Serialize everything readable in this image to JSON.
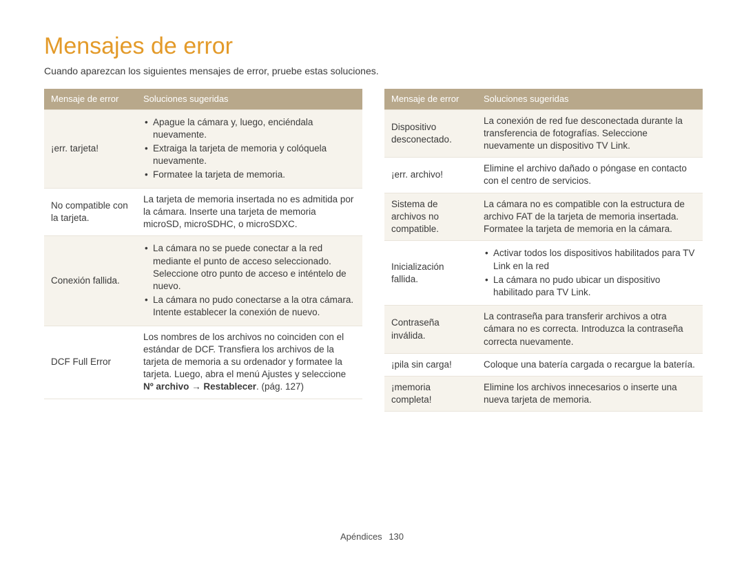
{
  "colors": {
    "title": "#e39a29",
    "header_bg": "#b8a88b",
    "header_text": "#ffffff",
    "row_alt_bg": "#f6f3ec",
    "row_bg": "#ffffff",
    "border": "#e9e4da",
    "text": "#3a3a3a"
  },
  "typography": {
    "title_fontsize": 34,
    "body_fontsize": 13.5,
    "header_fontsize": 13,
    "line_height": 1.35
  },
  "title": "Mensajes de error",
  "intro": "Cuando aparezcan los siguientes mensajes de error, pruebe estas soluciones.",
  "headers": {
    "c1": "Mensaje de error",
    "c2": "Soluciones sugeridas"
  },
  "left": [
    {
      "error": "¡err. tarjeta!",
      "type": "list",
      "items": [
        "Apague la cámara y, luego, enciéndala nuevamente.",
        "Extraiga la tarjeta de memoria y colóquela nuevamente.",
        "Formatee la tarjeta de memoria."
      ],
      "shaded": true
    },
    {
      "error": "No compatible con la tarjeta.",
      "type": "text",
      "text": "La tarjeta de memoria insertada no es admitida por la cámara. Inserte una tarjeta de memoria microSD, microSDHC, o microSDXC.",
      "shaded": false
    },
    {
      "error": "Conexión fallida.",
      "type": "list",
      "items": [
        "La cámara no se puede conectar a la red mediante el punto de acceso seleccionado. Seleccione otro punto de acceso e inténtelo de nuevo.",
        "La cámara no pudo conectarse a la otra cámara. Intente establecer la conexión de nuevo."
      ],
      "shaded": true
    },
    {
      "error": "DCF Full Error",
      "type": "dcf",
      "pre": "Los nombres de los archivos no coinciden con el estándar de DCF. Transfiera los archivos de la tarjeta de memoria a su ordenador y formatee la tarjeta. Luego, abra el menú Ajustes y seleccione ",
      "bold": "Nº archivo → Restablecer",
      "post": ". (pág. 127)",
      "shaded": false
    }
  ],
  "right": [
    {
      "error": "Dispositivo desconectado.",
      "type": "text",
      "text": "La conexión de red fue desconectada durante la transferencia de fotografías. Seleccione nuevamente un dispositivo TV Link.",
      "shaded": true
    },
    {
      "error": "¡err. archivo!",
      "type": "text",
      "text": "Elimine el archivo dañado o póngase en contacto con el centro de servicios.",
      "shaded": false
    },
    {
      "error": "Sistema de archivos no compatible.",
      "type": "text",
      "text": "La cámara no es compatible con la estructura de archivo FAT de la tarjeta de memoria insertada. Formatee la tarjeta de memoria en la cámara.",
      "shaded": true
    },
    {
      "error": "Inicialización fallida.",
      "type": "list",
      "items": [
        "Activar todos los dispositivos habilitados para TV Link en la red",
        "La cámara no pudo ubicar un dispositivo habilitado para TV Link."
      ],
      "shaded": false
    },
    {
      "error": "Contraseña inválida.",
      "type": "text",
      "text": "La contraseña para transferir archivos a otra cámara no es correcta. Introduzca la contraseña correcta nuevamente.",
      "shaded": true
    },
    {
      "error": "¡pila sin carga!",
      "type": "text",
      "text": "Coloque una batería cargada o recargue la batería.",
      "shaded": false
    },
    {
      "error": "¡memoria completa!",
      "type": "text",
      "text": "Elimine los archivos innecesarios o inserte una nueva tarjeta de memoria.",
      "shaded": true
    }
  ],
  "footer": {
    "section": "Apéndices",
    "page": "130"
  }
}
